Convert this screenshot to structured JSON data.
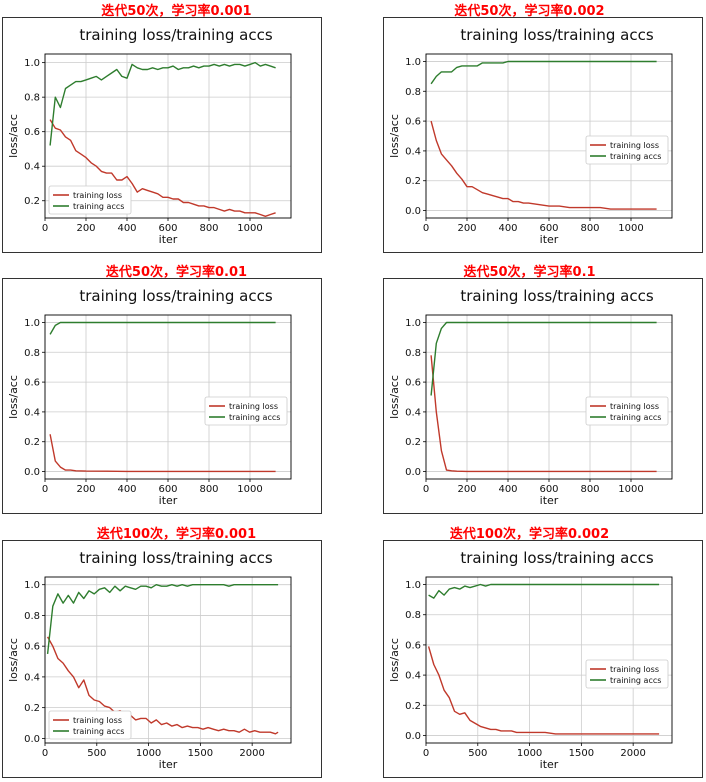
{
  "colors": {
    "loss": "#c0392b",
    "acc": "#2e7d2e",
    "caption": "#ff0000",
    "grid": "#cccccc"
  },
  "chart_data": [
    {
      "type": "line",
      "caption": "迭代50次，学习率0.001",
      "title": "training loss/training accs",
      "xlabel": "iter",
      "ylabel": "loss/acc",
      "xlim": [
        0,
        1200
      ],
      "ylim": [
        0.1,
        1.05
      ],
      "xticks": [
        0,
        200,
        400,
        600,
        800,
        1000
      ],
      "xtick_labels": [
        "0",
        "200",
        "400",
        "600",
        "800",
        "1000"
      ],
      "yticks": [
        0.2,
        0.4,
        0.6,
        0.8,
        1.0
      ],
      "ytick_labels": [
        "0.2",
        "0.4",
        "0.6",
        "0.8",
        "1.0"
      ],
      "legend": "lower-left",
      "series": [
        {
          "name": "training loss",
          "color_key": "loss",
          "x": [
            25,
            50,
            75,
            100,
            125,
            150,
            175,
            200,
            225,
            250,
            275,
            300,
            325,
            350,
            375,
            400,
            425,
            450,
            475,
            500,
            525,
            550,
            575,
            600,
            625,
            650,
            675,
            700,
            725,
            750,
            775,
            800,
            825,
            850,
            875,
            900,
            925,
            950,
            975,
            1000,
            1025,
            1050,
            1075,
            1100,
            1125
          ],
          "y": [
            0.67,
            0.62,
            0.61,
            0.57,
            0.55,
            0.49,
            0.47,
            0.45,
            0.42,
            0.4,
            0.37,
            0.36,
            0.36,
            0.32,
            0.32,
            0.34,
            0.3,
            0.25,
            0.27,
            0.26,
            0.25,
            0.24,
            0.22,
            0.22,
            0.21,
            0.21,
            0.19,
            0.19,
            0.18,
            0.17,
            0.17,
            0.16,
            0.16,
            0.15,
            0.14,
            0.15,
            0.14,
            0.14,
            0.13,
            0.13,
            0.13,
            0.12,
            0.11,
            0.12,
            0.13
          ]
        },
        {
          "name": "training accs",
          "color_key": "acc",
          "x": [
            25,
            50,
            75,
            100,
            125,
            150,
            175,
            200,
            225,
            250,
            275,
            300,
            325,
            350,
            375,
            400,
            425,
            450,
            475,
            500,
            525,
            550,
            575,
            600,
            625,
            650,
            675,
            700,
            725,
            750,
            775,
            800,
            825,
            850,
            875,
            900,
            925,
            950,
            975,
            1000,
            1025,
            1050,
            1075,
            1100,
            1125
          ],
          "y": [
            0.52,
            0.8,
            0.74,
            0.85,
            0.87,
            0.89,
            0.89,
            0.9,
            0.91,
            0.92,
            0.9,
            0.92,
            0.94,
            0.96,
            0.92,
            0.91,
            0.99,
            0.97,
            0.96,
            0.96,
            0.97,
            0.96,
            0.97,
            0.97,
            0.98,
            0.96,
            0.97,
            0.97,
            0.98,
            0.97,
            0.98,
            0.98,
            0.99,
            0.98,
            0.99,
            0.98,
            0.99,
            0.99,
            0.98,
            0.99,
            1.0,
            0.98,
            0.99,
            0.98,
            0.97
          ]
        }
      ]
    },
    {
      "type": "line",
      "caption": "迭代50次，学习率0.002",
      "title": "training loss/training accs",
      "xlabel": "iter",
      "ylabel": "loss/acc",
      "xlim": [
        0,
        1200
      ],
      "ylim": [
        -0.05,
        1.05
      ],
      "xticks": [
        0,
        200,
        400,
        600,
        800,
        1000
      ],
      "xtick_labels": [
        "0",
        "200",
        "400",
        "600",
        "800",
        "1000"
      ],
      "yticks": [
        0.0,
        0.2,
        0.4,
        0.6,
        0.8,
        1.0
      ],
      "ytick_labels": [
        "0.0",
        "0.2",
        "0.4",
        "0.6",
        "0.8",
        "1.0"
      ],
      "legend": "center-right",
      "series": [
        {
          "name": "training loss",
          "color_key": "loss",
          "x": [
            25,
            50,
            75,
            100,
            125,
            150,
            175,
            200,
            225,
            250,
            275,
            300,
            325,
            350,
            375,
            400,
            425,
            450,
            475,
            500,
            550,
            600,
            650,
            700,
            750,
            800,
            850,
            900,
            950,
            1000,
            1050,
            1100,
            1125
          ],
          "y": [
            0.6,
            0.47,
            0.38,
            0.34,
            0.3,
            0.25,
            0.21,
            0.16,
            0.16,
            0.14,
            0.12,
            0.11,
            0.1,
            0.09,
            0.08,
            0.08,
            0.06,
            0.06,
            0.05,
            0.05,
            0.04,
            0.03,
            0.03,
            0.02,
            0.02,
            0.02,
            0.02,
            0.01,
            0.01,
            0.01,
            0.01,
            0.01,
            0.01
          ]
        },
        {
          "name": "training accs",
          "color_key": "acc",
          "x": [
            25,
            50,
            75,
            100,
            125,
            150,
            175,
            200,
            225,
            250,
            275,
            300,
            325,
            350,
            375,
            400,
            425,
            450,
            475,
            500,
            600,
            700,
            800,
            900,
            1000,
            1100,
            1125
          ],
          "y": [
            0.85,
            0.9,
            0.93,
            0.93,
            0.93,
            0.96,
            0.97,
            0.97,
            0.97,
            0.97,
            0.99,
            0.99,
            0.99,
            0.99,
            0.99,
            1.0,
            1.0,
            1.0,
            1.0,
            1.0,
            1.0,
            1.0,
            1.0,
            1.0,
            1.0,
            1.0,
            1.0
          ]
        }
      ]
    },
    {
      "type": "line",
      "caption": "迭代50次，学习率0.01",
      "title": "training loss/training accs",
      "xlabel": "iter",
      "ylabel": "loss/acc",
      "xlim": [
        0,
        1200
      ],
      "ylim": [
        -0.05,
        1.05
      ],
      "xticks": [
        0,
        200,
        400,
        600,
        800,
        1000
      ],
      "xtick_labels": [
        "0",
        "200",
        "400",
        "600",
        "800",
        "1000"
      ],
      "yticks": [
        0.0,
        0.2,
        0.4,
        0.6,
        0.8,
        1.0
      ],
      "ytick_labels": [
        "0.0",
        "0.2",
        "0.4",
        "0.6",
        "0.8",
        "1.0"
      ],
      "legend": "center-right",
      "series": [
        {
          "name": "training loss",
          "color_key": "loss",
          "x": [
            25,
            50,
            75,
            100,
            125,
            150,
            200,
            300,
            400,
            500,
            600,
            700,
            800,
            900,
            1000,
            1100,
            1125
          ],
          "y": [
            0.25,
            0.07,
            0.03,
            0.01,
            0.01,
            0.005,
            0.003,
            0.002,
            0.001,
            0.001,
            0.001,
            0.001,
            0.001,
            0.001,
            0.001,
            0.001,
            0.001
          ]
        },
        {
          "name": "training accs",
          "color_key": "acc",
          "x": [
            25,
            50,
            75,
            100,
            125,
            150,
            200,
            300,
            400,
            500,
            600,
            700,
            800,
            900,
            1000,
            1100,
            1125
          ],
          "y": [
            0.92,
            0.98,
            1.0,
            1.0,
            1.0,
            1.0,
            1.0,
            1.0,
            1.0,
            1.0,
            1.0,
            1.0,
            1.0,
            1.0,
            1.0,
            1.0,
            1.0
          ]
        }
      ]
    },
    {
      "type": "line",
      "caption": "迭代50次，学习率0.1",
      "title": "training loss/training accs",
      "xlabel": "iter",
      "ylabel": "loss/acc",
      "xlim": [
        0,
        1200
      ],
      "ylim": [
        -0.05,
        1.05
      ],
      "xticks": [
        0,
        200,
        400,
        600,
        800,
        1000
      ],
      "xtick_labels": [
        "0",
        "200",
        "400",
        "600",
        "800",
        "1000"
      ],
      "yticks": [
        0.0,
        0.2,
        0.4,
        0.6,
        0.8,
        1.0
      ],
      "ytick_labels": [
        "0.0",
        "0.2",
        "0.4",
        "0.6",
        "0.8",
        "1.0"
      ],
      "legend": "center-right",
      "series": [
        {
          "name": "training loss",
          "color_key": "loss",
          "x": [
            25,
            50,
            75,
            100,
            125,
            150,
            200,
            300,
            400,
            500,
            600,
            700,
            800,
            900,
            1000,
            1100,
            1125
          ],
          "y": [
            0.78,
            0.4,
            0.14,
            0.01,
            0.005,
            0.002,
            0.001,
            0.001,
            0.001,
            0.001,
            0.001,
            0.001,
            0.001,
            0.001,
            0.001,
            0.001,
            0.001
          ]
        },
        {
          "name": "training accs",
          "color_key": "acc",
          "x": [
            25,
            50,
            75,
            100,
            125,
            150,
            200,
            300,
            400,
            500,
            600,
            700,
            800,
            900,
            1000,
            1100,
            1125
          ],
          "y": [
            0.51,
            0.86,
            0.96,
            1.0,
            1.0,
            1.0,
            1.0,
            1.0,
            1.0,
            1.0,
            1.0,
            1.0,
            1.0,
            1.0,
            1.0,
            1.0,
            1.0
          ]
        }
      ]
    },
    {
      "type": "line",
      "caption": "迭代100次，学习率0.001",
      "title": "training loss/training accs",
      "xlabel": "iter",
      "ylabel": "loss/acc",
      "xlim": [
        0,
        2375
      ],
      "ylim": [
        -0.03,
        1.05
      ],
      "xticks": [
        0,
        500,
        1000,
        1500,
        2000
      ],
      "xtick_labels": [
        "0",
        "500",
        "1000",
        "1500",
        "2000"
      ],
      "yticks": [
        0.0,
        0.2,
        0.4,
        0.6,
        0.8,
        1.0
      ],
      "ytick_labels": [
        "0.0",
        "0.2",
        "0.4",
        "0.6",
        "0.8",
        "1.0"
      ],
      "legend": "lower-left",
      "series": [
        {
          "name": "training loss",
          "color_key": "loss",
          "x": [
            25,
            75,
            125,
            175,
            225,
            275,
            325,
            375,
            425,
            475,
            525,
            575,
            625,
            675,
            725,
            775,
            825,
            875,
            925,
            975,
            1025,
            1075,
            1125,
            1175,
            1225,
            1275,
            1325,
            1375,
            1425,
            1475,
            1525,
            1575,
            1625,
            1675,
            1725,
            1775,
            1825,
            1875,
            1925,
            1975,
            2025,
            2075,
            2125,
            2175,
            2225,
            2250
          ],
          "y": [
            0.66,
            0.6,
            0.52,
            0.49,
            0.44,
            0.4,
            0.33,
            0.38,
            0.28,
            0.25,
            0.24,
            0.21,
            0.2,
            0.17,
            0.18,
            0.15,
            0.15,
            0.12,
            0.13,
            0.13,
            0.1,
            0.12,
            0.09,
            0.1,
            0.08,
            0.09,
            0.07,
            0.08,
            0.07,
            0.07,
            0.06,
            0.07,
            0.06,
            0.05,
            0.06,
            0.05,
            0.05,
            0.04,
            0.06,
            0.04,
            0.05,
            0.04,
            0.04,
            0.04,
            0.03,
            0.04
          ]
        },
        {
          "name": "training accs",
          "color_key": "acc",
          "x": [
            25,
            75,
            125,
            175,
            225,
            275,
            325,
            375,
            425,
            475,
            525,
            575,
            625,
            675,
            725,
            775,
            825,
            875,
            925,
            975,
            1025,
            1075,
            1125,
            1175,
            1225,
            1275,
            1325,
            1375,
            1425,
            1475,
            1525,
            1575,
            1625,
            1675,
            1725,
            1775,
            1825,
            1875,
            1925,
            1975,
            2025,
            2075,
            2125,
            2175,
            2225,
            2250
          ],
          "y": [
            0.55,
            0.86,
            0.94,
            0.88,
            0.93,
            0.88,
            0.95,
            0.91,
            0.96,
            0.94,
            0.97,
            0.98,
            0.95,
            0.99,
            0.96,
            0.99,
            0.98,
            0.97,
            0.99,
            0.99,
            0.98,
            1.0,
            0.99,
            0.99,
            1.0,
            0.99,
            1.0,
            0.99,
            1.0,
            1.0,
            1.0,
            1.0,
            1.0,
            1.0,
            1.0,
            0.99,
            1.0,
            1.0,
            1.0,
            1.0,
            1.0,
            1.0,
            1.0,
            1.0,
            1.0,
            1.0
          ]
        }
      ]
    },
    {
      "type": "line",
      "caption": "迭代100次，学习率0.002",
      "title": "training loss/training accs",
      "xlabel": "iter",
      "ylabel": "loss/acc",
      "xlim": [
        0,
        2375
      ],
      "ylim": [
        -0.05,
        1.05
      ],
      "xticks": [
        0,
        500,
        1000,
        1500,
        2000
      ],
      "xtick_labels": [
        "0",
        "500",
        "1000",
        "1500",
        "2000"
      ],
      "yticks": [
        0.0,
        0.2,
        0.4,
        0.6,
        0.8,
        1.0
      ],
      "ytick_labels": [
        "0.0",
        "0.2",
        "0.4",
        "0.6",
        "0.8",
        "1.0"
      ],
      "legend": "center-right",
      "series": [
        {
          "name": "training loss",
          "color_key": "loss",
          "x": [
            25,
            75,
            125,
            175,
            225,
            275,
            325,
            375,
            425,
            475,
            525,
            575,
            625,
            675,
            725,
            775,
            825,
            875,
            925,
            975,
            1050,
            1150,
            1250,
            1350,
            1450,
            1550,
            1650,
            1750,
            1850,
            1950,
            2050,
            2150,
            2250
          ],
          "y": [
            0.59,
            0.47,
            0.4,
            0.3,
            0.25,
            0.16,
            0.14,
            0.15,
            0.1,
            0.08,
            0.06,
            0.05,
            0.04,
            0.04,
            0.03,
            0.03,
            0.03,
            0.02,
            0.02,
            0.02,
            0.02,
            0.02,
            0.01,
            0.01,
            0.01,
            0.01,
            0.01,
            0.01,
            0.01,
            0.01,
            0.01,
            0.01,
            0.01
          ]
        },
        {
          "name": "training accs",
          "color_key": "acc",
          "x": [
            25,
            75,
            125,
            175,
            225,
            275,
            325,
            375,
            425,
            475,
            525,
            575,
            625,
            675,
            725,
            775,
            825,
            875,
            925,
            975,
            1050,
            1150,
            1250,
            1350,
            1450,
            1550,
            1650,
            1750,
            1850,
            1950,
            2050,
            2150,
            2250
          ],
          "y": [
            0.93,
            0.91,
            0.96,
            0.93,
            0.97,
            0.98,
            0.97,
            0.99,
            0.98,
            0.99,
            1.0,
            0.99,
            1.0,
            1.0,
            1.0,
            1.0,
            1.0,
            1.0,
            1.0,
            1.0,
            1.0,
            1.0,
            1.0,
            1.0,
            1.0,
            1.0,
            1.0,
            1.0,
            1.0,
            1.0,
            1.0,
            1.0,
            1.0
          ]
        }
      ]
    }
  ]
}
